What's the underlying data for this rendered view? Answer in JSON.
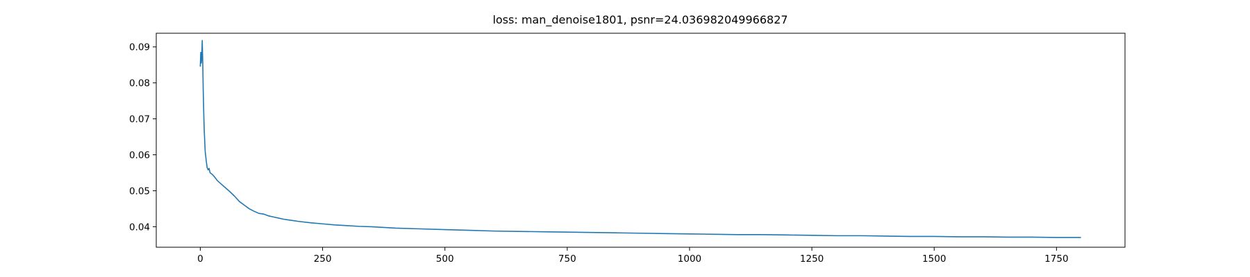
{
  "chart_data": {
    "type": "line",
    "title": "loss: man_denoise1801, psnr=24.036982049966827",
    "xlabel": "",
    "ylabel": "",
    "xlim": [
      -90,
      1890
    ],
    "ylim": [
      0.0343,
      0.0938
    ],
    "xticks": [
      0,
      250,
      500,
      750,
      1000,
      1250,
      1500,
      1750
    ],
    "yticks": [
      0.04,
      0.05,
      0.06,
      0.07,
      0.08,
      0.09
    ],
    "xtick_labels": [
      "0",
      "250",
      "500",
      "750",
      "1000",
      "1250",
      "1500",
      "1750"
    ],
    "ytick_labels": [
      "0.04",
      "0.05",
      "0.06",
      "0.07",
      "0.08",
      "0.09"
    ],
    "grid": false,
    "series": [
      {
        "color": "#1f77b4",
        "x": [
          0,
          1,
          2,
          3,
          4,
          5,
          6,
          7,
          8,
          9,
          10,
          12,
          14,
          16,
          18,
          20,
          22,
          25,
          30,
          35,
          40,
          50,
          60,
          70,
          80,
          90,
          100,
          110,
          120,
          130,
          140,
          150,
          160,
          170,
          180,
          190,
          200,
          225,
          250,
          275,
          300,
          325,
          350,
          375,
          400,
          450,
          500,
          550,
          600,
          650,
          700,
          750,
          800,
          850,
          900,
          950,
          1000,
          1050,
          1100,
          1150,
          1200,
          1250,
          1300,
          1350,
          1400,
          1450,
          1500,
          1550,
          1600,
          1650,
          1700,
          1750,
          1800
        ],
        "values": [
          0.0845,
          0.0885,
          0.0855,
          0.087,
          0.0918,
          0.086,
          0.078,
          0.072,
          0.067,
          0.064,
          0.061,
          0.0585,
          0.0565,
          0.0558,
          0.0562,
          0.055,
          0.0548,
          0.0545,
          0.0537,
          0.0528,
          0.0522,
          0.051,
          0.0498,
          0.0485,
          0.047,
          0.046,
          0.045,
          0.0443,
          0.0437,
          0.0435,
          0.043,
          0.0427,
          0.0424,
          0.0421,
          0.0419,
          0.0417,
          0.0415,
          0.0411,
          0.0408,
          0.0405,
          0.0403,
          0.0401,
          0.04,
          0.0398,
          0.0396,
          0.0394,
          0.0392,
          0.039,
          0.0388,
          0.0387,
          0.0386,
          0.0385,
          0.0384,
          0.0383,
          0.0382,
          0.0381,
          0.038,
          0.0379,
          0.0378,
          0.0378,
          0.0377,
          0.0376,
          0.0375,
          0.0375,
          0.0374,
          0.0373,
          0.0373,
          0.0372,
          0.0372,
          0.0371,
          0.0371,
          0.037,
          0.037
        ]
      }
    ]
  }
}
